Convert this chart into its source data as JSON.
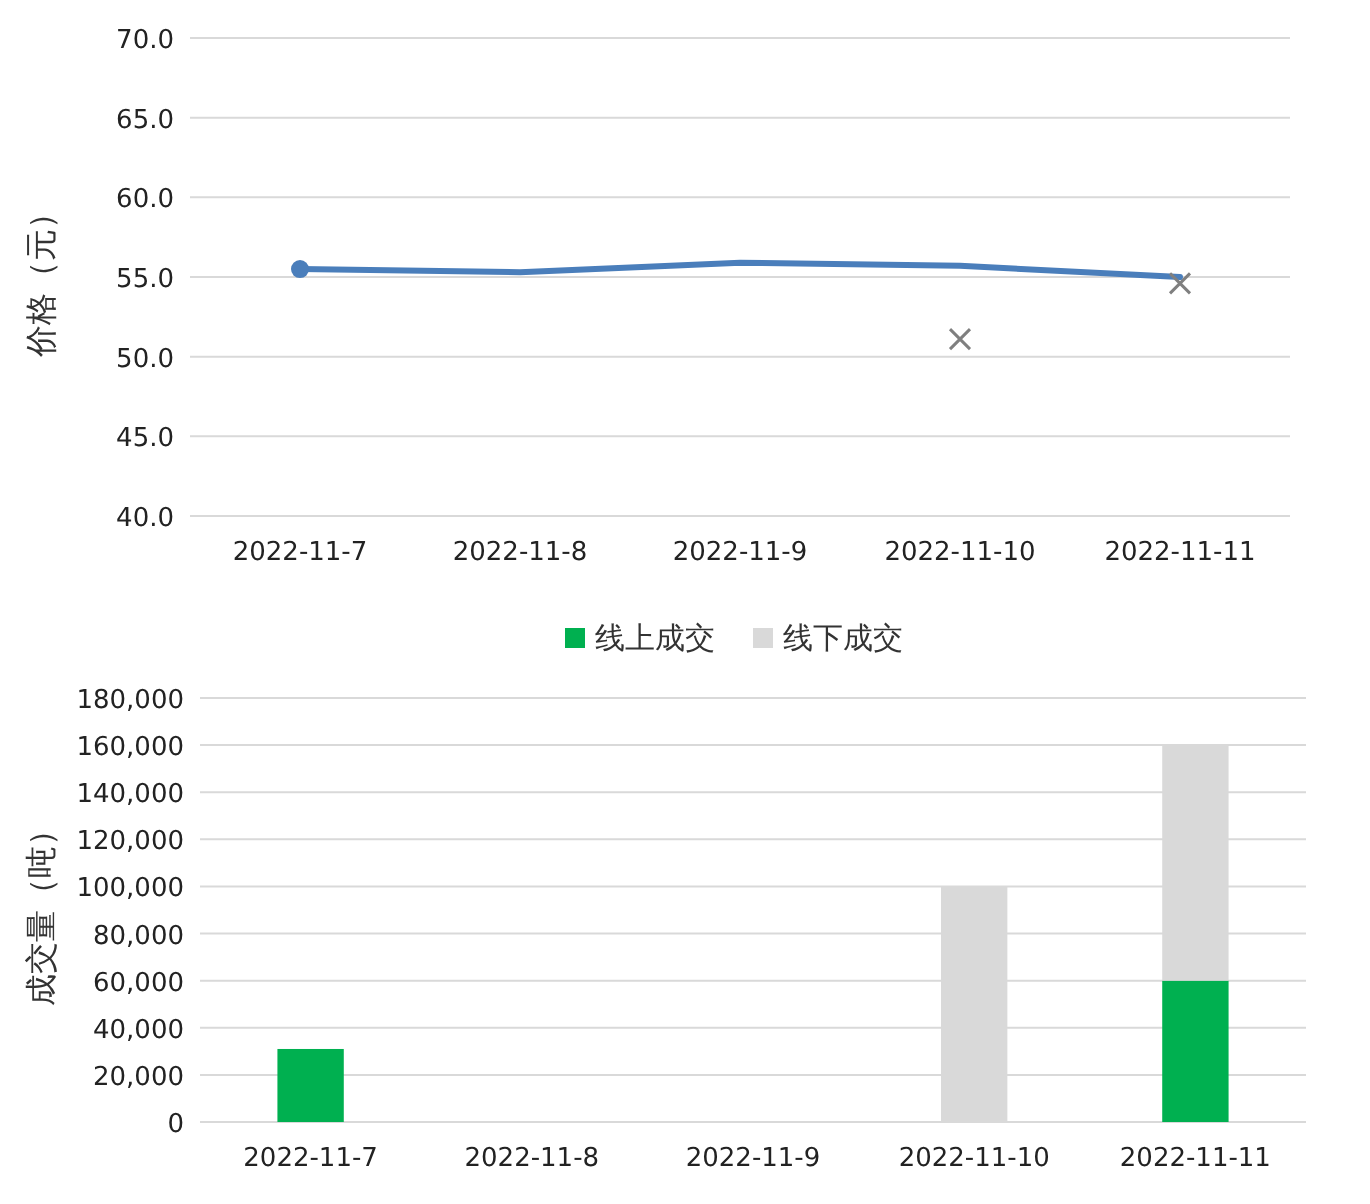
{
  "chart_data": [
    {
      "type": "line",
      "ylabel": "价格（元）",
      "categories": [
        "2022-11-7",
        "2022-11-8",
        "2022-11-9",
        "2022-11-10",
        "2022-11-11"
      ],
      "series": [
        {
          "color": "#4a7ebb",
          "values": [
            55.5,
            55.3,
            55.9,
            55.7,
            55.0
          ],
          "marker": "none"
        },
        {
          "type": "scatter",
          "color": "#4a7ebb",
          "values": [
            55.5,
            null,
            null,
            null,
            null
          ],
          "marker": "circle"
        },
        {
          "type": "scatter",
          "color": "#7f7f7f",
          "values": [
            null,
            null,
            null,
            51.1,
            54.6
          ],
          "marker": "cross"
        }
      ],
      "ylim": [
        40,
        70
      ],
      "yticks": [
        {
          "value": 40,
          "label": "40.0"
        },
        {
          "value": 45,
          "label": "45.0"
        },
        {
          "value": 50,
          "label": "50.0"
        },
        {
          "value": 55,
          "label": "55.0"
        },
        {
          "value": 60,
          "label": "60.0"
        },
        {
          "value": 65,
          "label": "65.0"
        },
        {
          "value": 70,
          "label": "70.0"
        }
      ],
      "grid": "y"
    },
    {
      "type": "bar",
      "stacked": true,
      "ylabel": "成交量（吨）",
      "categories": [
        "2022-11-7",
        "2022-11-8",
        "2022-11-9",
        "2022-11-10",
        "2022-11-11"
      ],
      "series": [
        {
          "name": "线上成交",
          "color": "#00b050",
          "values": [
            31000,
            0,
            0,
            0,
            60000
          ]
        },
        {
          "name": "线下成交",
          "color": "#d9d9d9",
          "values": [
            0,
            0,
            0,
            100000,
            100000
          ]
        }
      ],
      "ylim": [
        0,
        180000
      ],
      "yticks": [
        0,
        {
          "value": 20000,
          "label": "20,000"
        },
        {
          "value": 40000,
          "label": "40,000"
        },
        {
          "value": 60000,
          "label": "60,000"
        },
        {
          "value": 80000,
          "label": "80,000"
        },
        {
          "value": 100000,
          "label": "100,000"
        },
        {
          "value": 120000,
          "label": "120,000"
        },
        {
          "value": 140000,
          "label": "140,000"
        },
        {
          "value": 160000,
          "label": "160,000"
        },
        {
          "value": 180000,
          "label": "180,000"
        }
      ],
      "grid": "y",
      "legend": "top"
    }
  ]
}
